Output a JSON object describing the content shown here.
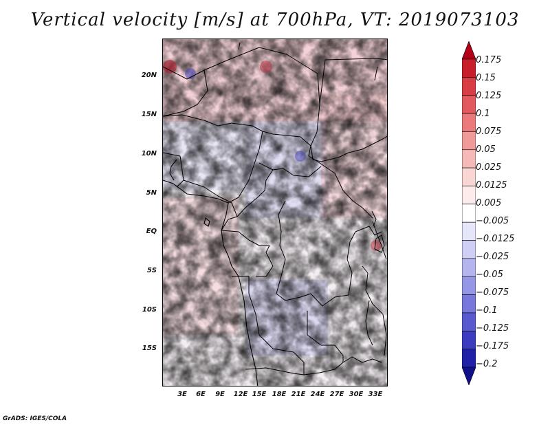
{
  "title": "Vertical velocity [m/s] at 700hPa, VT: 2019073103",
  "footer": "GrADS: IGES/COLA",
  "map": {
    "lat_labels": [
      "20N",
      "15N",
      "10N",
      "5N",
      "EQ",
      "5S",
      "10S",
      "15S"
    ],
    "lon_labels": [
      "3E",
      "6E",
      "9E",
      "12E",
      "15E",
      "18E",
      "21E",
      "24E",
      "27E",
      "30E",
      "33E"
    ]
  },
  "colorbar": {
    "labels": [
      "0.175",
      "0.15",
      "0.125",
      "0.1",
      "0.075",
      "0.05",
      "0.025",
      "0.0125",
      "0.005",
      "−0.005",
      "−0.0125",
      "−0.025",
      "−0.05",
      "−0.075",
      "−0.1",
      "−0.125",
      "−0.175",
      "−0.2"
    ],
    "colors": [
      "#b30018",
      "#c81e2a",
      "#d83c44",
      "#e35a5e",
      "#ea7a7c",
      "#f09a9a",
      "#f5b9b8",
      "#f9d5d4",
      "#fcebea",
      "#ffffff",
      "#e6e6fa",
      "#cfcff5",
      "#b4b4ef",
      "#9696e6",
      "#7878dc",
      "#5a5ad0",
      "#3c3cc0",
      "#2020a8",
      "#10108c"
    ]
  }
}
